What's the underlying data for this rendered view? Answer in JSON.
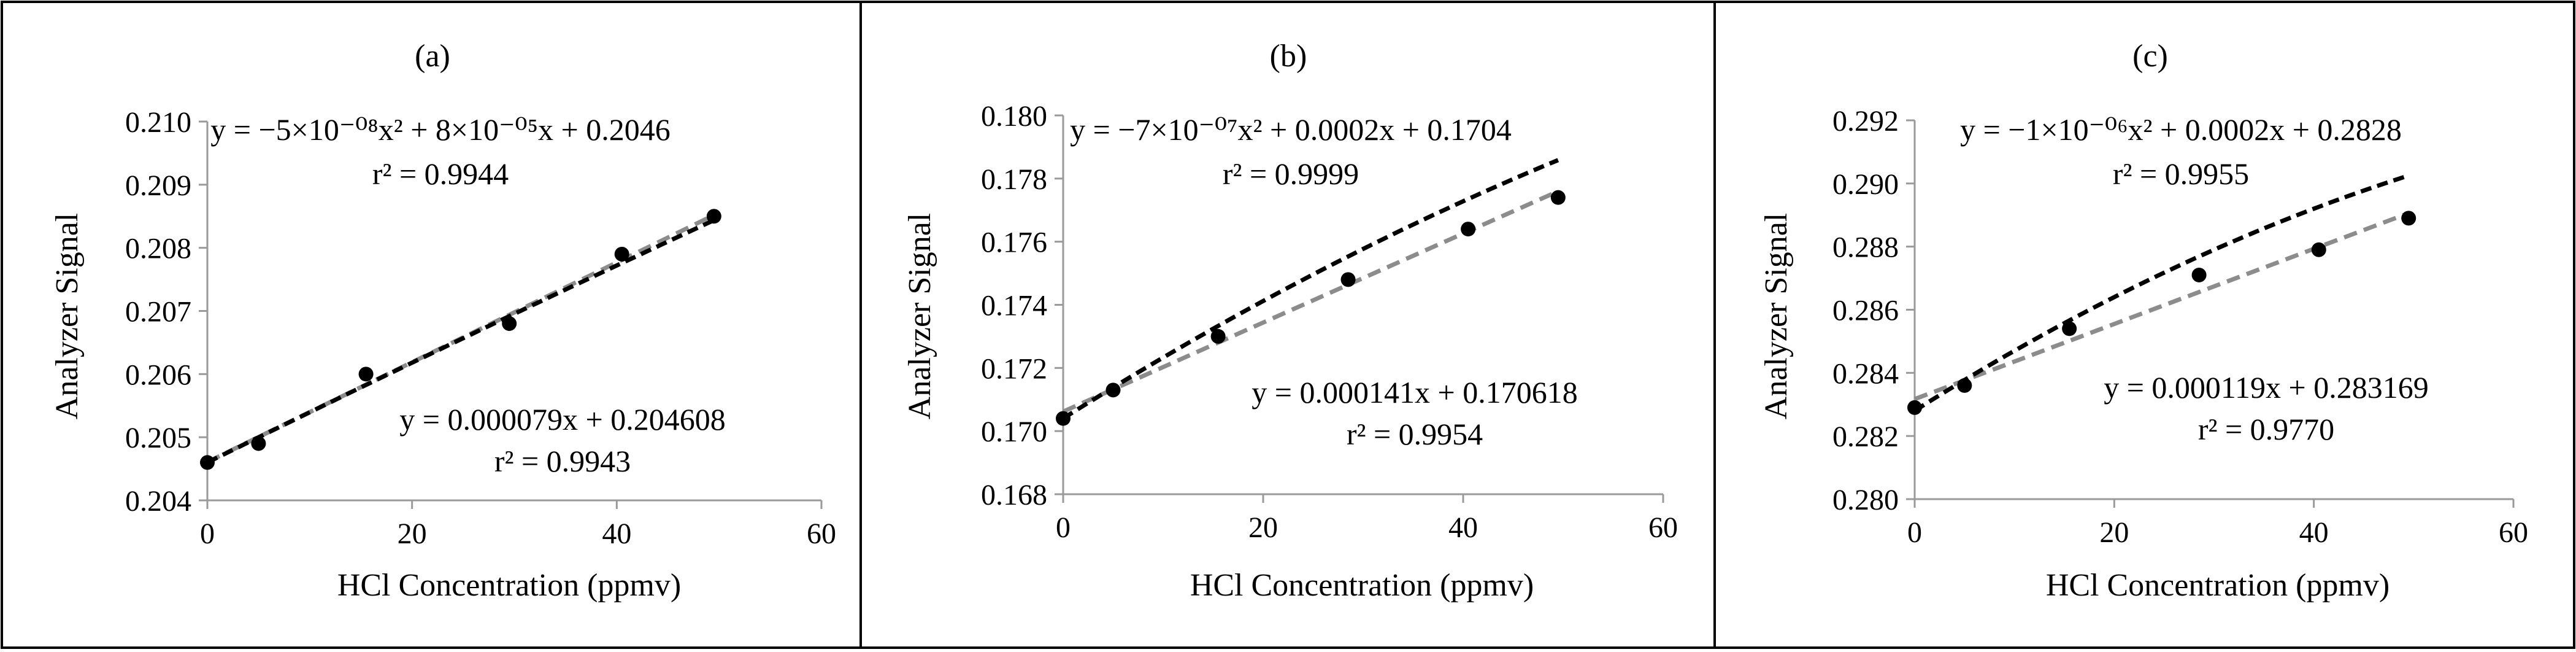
{
  "chart_data": [
    {
      "type": "scatter",
      "panel_label": "(a)",
      "xlabel": "HCl Concentration  (ppmv)",
      "ylabel": "Analyzer  Signal",
      "xlim": [
        0,
        60
      ],
      "ylim": [
        0.204,
        0.21
      ],
      "x_ticks": [
        0,
        20,
        40,
        60
      ],
      "y_ticks": [
        0.204,
        0.205,
        0.206,
        0.207,
        0.208,
        0.209,
        0.21
      ],
      "x_tick_labels": [
        "0",
        "20",
        "40",
        "60"
      ],
      "y_tick_labels": [
        "0.204",
        "0.205",
        "0.206",
        "0.207",
        "0.208",
        "0.209",
        "0.210"
      ],
      "points": {
        "x": [
          0,
          5,
          15.5,
          29.5,
          40.5,
          49.5
        ],
        "y": [
          0.2046,
          0.2049,
          0.206,
          0.2068,
          0.2079,
          0.2085
        ]
      },
      "quadratic_fit": {
        "a": -5e-08,
        "b": 8e-05,
        "c": 0.2046,
        "color": "#000000"
      },
      "linear_fit": {
        "m": 7.9e-05,
        "b": 0.204608,
        "color": "#8c8c8c"
      },
      "quad_eq": "y = −5×10⁻⁰⁸x² + 8×10⁻⁰⁵x + 0.2046",
      "quad_r2": "r² = 0.9944",
      "lin_eq": "y = 0.000079x + 0.204608",
      "lin_r2": "r² = 0.9943"
    },
    {
      "type": "scatter",
      "panel_label": "(b)",
      "xlabel": "HCl Concentration  (ppmv)",
      "ylabel": "Analyzer  Signal",
      "xlim": [
        0,
        60
      ],
      "ylim": [
        0.168,
        0.18
      ],
      "x_ticks": [
        0,
        20,
        40,
        60
      ],
      "y_ticks": [
        0.168,
        0.17,
        0.172,
        0.174,
        0.176,
        0.178,
        0.18
      ],
      "x_tick_labels": [
        "0",
        "20",
        "40",
        "60"
      ],
      "y_tick_labels": [
        "0.168",
        "0.170",
        "0.172",
        "0.174",
        "0.176",
        "0.178",
        "0.180"
      ],
      "points": {
        "x": [
          0,
          5,
          15.5,
          28.5,
          40.5,
          49.5
        ],
        "y": [
          0.1704,
          0.1713,
          0.173,
          0.1748,
          0.1764,
          0.1774
        ]
      },
      "quadratic_fit": {
        "a": -7e-07,
        "b": 0.0002,
        "c": 0.1704,
        "color": "#000000"
      },
      "linear_fit": {
        "m": 0.000141,
        "b": 0.170618,
        "color": "#8c8c8c"
      },
      "quad_eq": "y = −7×10⁻⁰⁷x² + 0.0002x + 0.1704",
      "quad_r2": "r² = 0.9999",
      "lin_eq": "y = 0.000141x + 0.170618",
      "lin_r2": "r² = 0.9954"
    },
    {
      "type": "scatter",
      "panel_label": "(c)",
      "xlabel": "HCl Concentration  (ppmv)",
      "ylabel": "Analyzer  Signal",
      "xlim": [
        0,
        60
      ],
      "ylim": [
        0.28,
        0.292
      ],
      "x_ticks": [
        0,
        20,
        40,
        60
      ],
      "y_ticks": [
        0.28,
        0.282,
        0.284,
        0.286,
        0.288,
        0.29,
        0.292
      ],
      "x_tick_labels": [
        "0",
        "20",
        "40",
        "60"
      ],
      "y_tick_labels": [
        "0.280",
        "0.282",
        "0.284",
        "0.286",
        "0.288",
        "0.290",
        "0.292"
      ],
      "points": {
        "x": [
          0,
          5,
          15.5,
          28.5,
          40.5,
          49.5
        ],
        "y": [
          0.2829,
          0.2836,
          0.2854,
          0.2871,
          0.2879,
          0.2889
        ]
      },
      "quadratic_fit": {
        "a": -1e-06,
        "b": 0.0002,
        "c": 0.2828,
        "color": "#000000"
      },
      "linear_fit": {
        "m": 0.000119,
        "b": 0.283169,
        "color": "#8c8c8c"
      },
      "quad_eq": "y = −1×10⁻⁰⁶x² + 0.0002x + 0.2828",
      "quad_r2": "r² = 0.9955",
      "lin_eq": "y = 0.000119x + 0.283169",
      "lin_r2": "r² = 0.9770"
    }
  ]
}
